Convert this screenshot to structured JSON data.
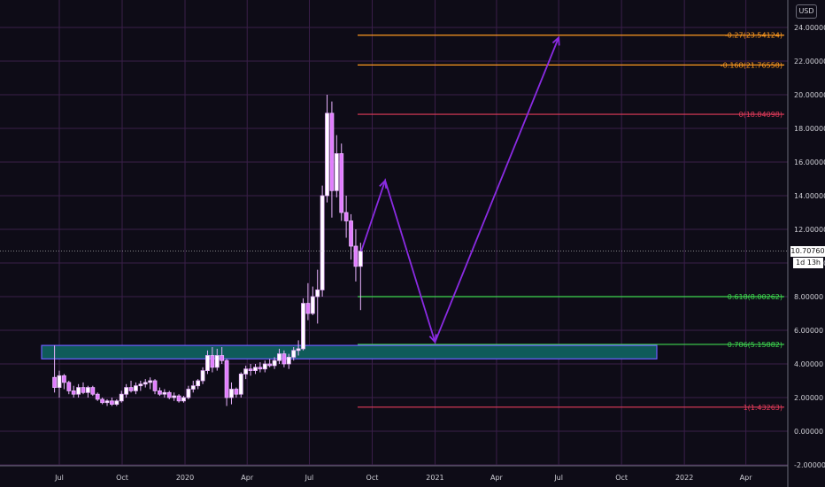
{
  "currency": "USD",
  "last_price_label": "10.70760",
  "countdown_label": "1d 13h",
  "chart_data": {
    "type": "candlestick",
    "title": "",
    "ylim": [
      -2,
      25
    ],
    "grid": true,
    "y_ticks": [
      "24.00000",
      "22.00000",
      "20.00000",
      "18.00000",
      "16.00000",
      "14.00000",
      "12.00000",
      "10.00000",
      "8.00000",
      "6.00000",
      "4.00000",
      "2.00000",
      "0.00000",
      "-2.00000"
    ],
    "x_ticks": [
      "Jul",
      "Oct",
      "2020",
      "Apr",
      "Jul",
      "Oct",
      "2021",
      "Apr",
      "Jul",
      "Oct",
      "2022",
      "Apr"
    ],
    "fib_levels": [
      {
        "label": "-0.27(23.54124)",
        "value": 23.54,
        "color": "#ff9a1f"
      },
      {
        "label": "-0.168(21.76558)",
        "value": 21.77,
        "color": "#ff9a1f"
      },
      {
        "label": "0(18.84098)",
        "value": 18.84,
        "color": "#e23b5a"
      },
      {
        "label": "0.618(8.00262)",
        "value": 8.0,
        "color": "#3ed84f"
      },
      {
        "label": "0.786(5.15882)",
        "value": 5.16,
        "color": "#3ed84f"
      },
      {
        "label": "1(1.43263)",
        "value": 1.43,
        "color": "#e23b5a"
      }
    ],
    "support_zone": {
      "low": 4.3,
      "high": 5.1
    },
    "last_price": 10.7076,
    "candles": [
      {
        "o": 3.2,
        "h": 5.1,
        "l": 2.3,
        "c": 2.6
      },
      {
        "o": 2.6,
        "h": 3.6,
        "l": 2.0,
        "c": 3.3
      },
      {
        "o": 3.3,
        "h": 3.4,
        "l": 2.5,
        "c": 2.9
      },
      {
        "o": 2.9,
        "h": 3.0,
        "l": 2.2,
        "c": 2.4
      },
      {
        "o": 2.4,
        "h": 2.7,
        "l": 2.0,
        "c": 2.2
      },
      {
        "o": 2.2,
        "h": 2.8,
        "l": 2.0,
        "c": 2.6
      },
      {
        "o": 2.6,
        "h": 2.9,
        "l": 2.2,
        "c": 2.3
      },
      {
        "o": 2.3,
        "h": 2.7,
        "l": 2.0,
        "c": 2.6
      },
      {
        "o": 2.6,
        "h": 2.7,
        "l": 2.1,
        "c": 2.2
      },
      {
        "o": 2.2,
        "h": 2.3,
        "l": 1.8,
        "c": 1.9
      },
      {
        "o": 1.9,
        "h": 2.0,
        "l": 1.6,
        "c": 1.7
      },
      {
        "o": 1.7,
        "h": 1.9,
        "l": 1.5,
        "c": 1.8
      },
      {
        "o": 1.8,
        "h": 2.0,
        "l": 1.5,
        "c": 1.6
      },
      {
        "o": 1.6,
        "h": 1.9,
        "l": 1.5,
        "c": 1.8
      },
      {
        "o": 1.8,
        "h": 2.4,
        "l": 1.7,
        "c": 2.2
      },
      {
        "o": 2.2,
        "h": 2.8,
        "l": 2.0,
        "c": 2.6
      },
      {
        "o": 2.6,
        "h": 3.0,
        "l": 2.3,
        "c": 2.4
      },
      {
        "o": 2.4,
        "h": 2.9,
        "l": 2.2,
        "c": 2.7
      },
      {
        "o": 2.7,
        "h": 3.0,
        "l": 2.4,
        "c": 2.8
      },
      {
        "o": 2.8,
        "h": 3.1,
        "l": 2.6,
        "c": 2.9
      },
      {
        "o": 2.9,
        "h": 3.2,
        "l": 2.5,
        "c": 3.0
      },
      {
        "o": 3.0,
        "h": 3.1,
        "l": 2.2,
        "c": 2.4
      },
      {
        "o": 2.4,
        "h": 2.6,
        "l": 2.1,
        "c": 2.2
      },
      {
        "o": 2.2,
        "h": 2.5,
        "l": 2.0,
        "c": 2.3
      },
      {
        "o": 2.3,
        "h": 2.4,
        "l": 1.9,
        "c": 2.0
      },
      {
        "o": 2.0,
        "h": 2.3,
        "l": 1.8,
        "c": 2.1
      },
      {
        "o": 2.1,
        "h": 2.2,
        "l": 1.7,
        "c": 1.8
      },
      {
        "o": 1.8,
        "h": 2.1,
        "l": 1.7,
        "c": 2.0
      },
      {
        "o": 2.0,
        "h": 2.7,
        "l": 1.9,
        "c": 2.5
      },
      {
        "o": 2.5,
        "h": 3.0,
        "l": 2.3,
        "c": 2.7
      },
      {
        "o": 2.7,
        "h": 3.1,
        "l": 2.5,
        "c": 3.0
      },
      {
        "o": 3.0,
        "h": 3.8,
        "l": 2.8,
        "c": 3.6
      },
      {
        "o": 3.6,
        "h": 4.8,
        "l": 3.4,
        "c": 4.5
      },
      {
        "o": 4.5,
        "h": 5.0,
        "l": 3.5,
        "c": 3.8
      },
      {
        "o": 3.8,
        "h": 4.9,
        "l": 3.6,
        "c": 4.5
      },
      {
        "o": 4.5,
        "h": 5.0,
        "l": 4.0,
        "c": 4.2
      },
      {
        "o": 4.2,
        "h": 4.3,
        "l": 1.5,
        "c": 2.0
      },
      {
        "o": 2.0,
        "h": 2.9,
        "l": 1.6,
        "c": 2.5
      },
      {
        "o": 2.5,
        "h": 2.6,
        "l": 2.0,
        "c": 2.2
      },
      {
        "o": 2.2,
        "h": 3.5,
        "l": 2.0,
        "c": 3.4
      },
      {
        "o": 3.4,
        "h": 3.9,
        "l": 3.1,
        "c": 3.7
      },
      {
        "o": 3.7,
        "h": 4.0,
        "l": 3.3,
        "c": 3.6
      },
      {
        "o": 3.6,
        "h": 4.0,
        "l": 3.4,
        "c": 3.8
      },
      {
        "o": 3.8,
        "h": 4.1,
        "l": 3.5,
        "c": 3.7
      },
      {
        "o": 3.7,
        "h": 4.2,
        "l": 3.5,
        "c": 4.0
      },
      {
        "o": 4.0,
        "h": 4.3,
        "l": 3.8,
        "c": 3.9
      },
      {
        "o": 3.9,
        "h": 4.4,
        "l": 3.7,
        "c": 4.2
      },
      {
        "o": 4.2,
        "h": 4.9,
        "l": 4.0,
        "c": 4.6
      },
      {
        "o": 4.6,
        "h": 4.8,
        "l": 3.8,
        "c": 4.0
      },
      {
        "o": 4.0,
        "h": 4.6,
        "l": 3.7,
        "c": 4.4
      },
      {
        "o": 4.4,
        "h": 5.0,
        "l": 4.2,
        "c": 4.8
      },
      {
        "o": 4.8,
        "h": 5.4,
        "l": 4.5,
        "c": 4.9
      },
      {
        "o": 4.9,
        "h": 7.9,
        "l": 4.8,
        "c": 7.6
      },
      {
        "o": 7.6,
        "h": 8.8,
        "l": 6.6,
        "c": 7.0
      },
      {
        "o": 7.0,
        "h": 8.6,
        "l": 6.9,
        "c": 8.0
      },
      {
        "o": 8.0,
        "h": 9.6,
        "l": 6.4,
        "c": 8.4
      },
      {
        "o": 8.4,
        "h": 14.6,
        "l": 8.0,
        "c": 14.0
      },
      {
        "o": 14.0,
        "h": 20.0,
        "l": 13.6,
        "c": 18.9
      },
      {
        "o": 18.9,
        "h": 19.6,
        "l": 12.7,
        "c": 14.3
      },
      {
        "o": 14.3,
        "h": 17.6,
        "l": 13.9,
        "c": 16.5
      },
      {
        "o": 16.5,
        "h": 17.1,
        "l": 12.5,
        "c": 13.0
      },
      {
        "o": 13.0,
        "h": 14.0,
        "l": 11.5,
        "c": 12.5
      },
      {
        "o": 12.5,
        "h": 12.9,
        "l": 10.2,
        "c": 11.0
      },
      {
        "o": 11.0,
        "h": 12.0,
        "l": 8.9,
        "c": 9.8
      },
      {
        "o": 9.8,
        "h": 11.2,
        "l": 7.2,
        "c": 10.7
      }
    ],
    "projection_path": [
      {
        "x": "2020-09-15",
        "y": 10.7
      },
      {
        "x": "2020-10-20",
        "y": 14.9
      },
      {
        "x": "2021-01-01",
        "y": 5.3
      },
      {
        "x": "2021-07-01",
        "y": 23.4
      }
    ]
  }
}
